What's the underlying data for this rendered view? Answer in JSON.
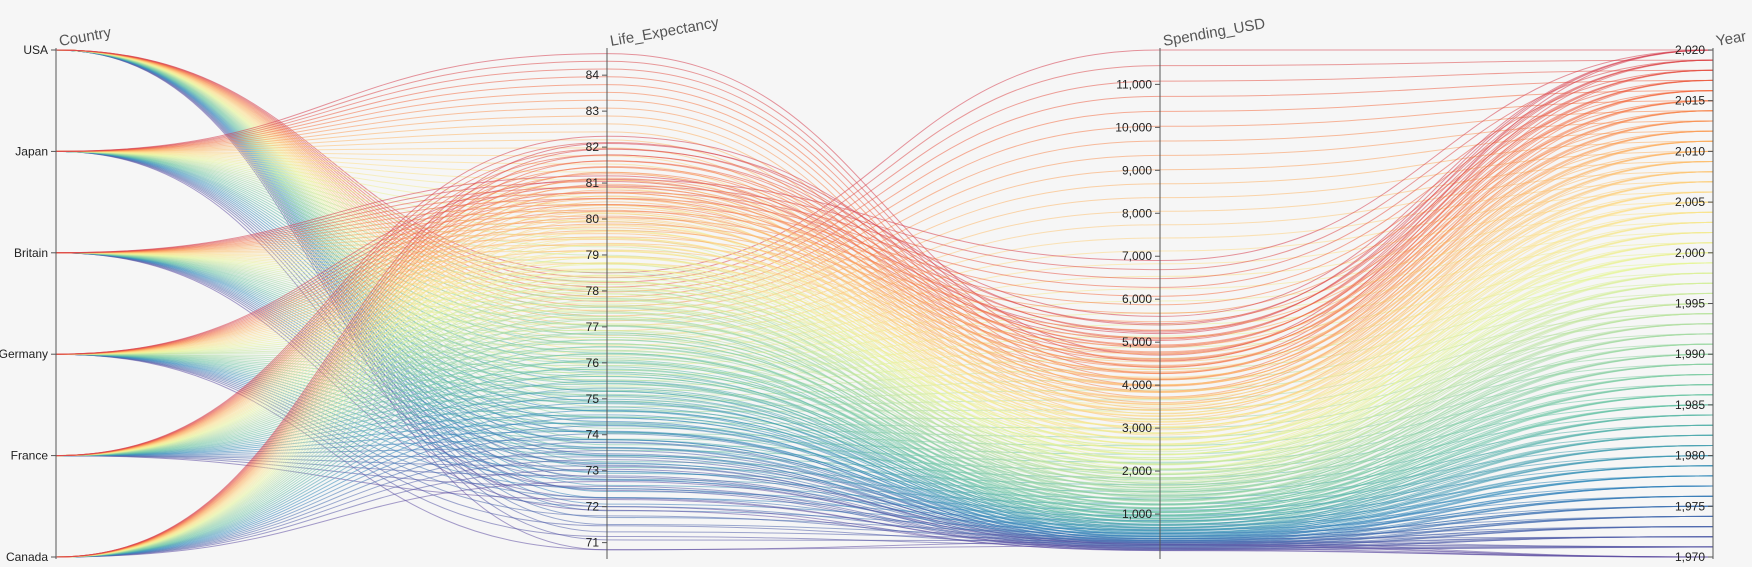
{
  "chart_data": {
    "type": "parallel_coordinates",
    "title": "",
    "dimensions": [
      {
        "name": "Country",
        "kind": "categorical",
        "categories": [
          "USA",
          "Japan",
          "Britain",
          "Germany",
          "France",
          "Canada"
        ]
      },
      {
        "name": "Life_Expectancy",
        "kind": "numeric",
        "range": [
          70.6,
          84.7
        ],
        "ticks": [
          71,
          72,
          73,
          74,
          75,
          76,
          77,
          78,
          79,
          80,
          81,
          82,
          83,
          84
        ],
        "tick_labels": [
          "71",
          "72",
          "73",
          "74",
          "75",
          "76",
          "77",
          "78",
          "79",
          "80",
          "81",
          "82",
          "83",
          "84"
        ]
      },
      {
        "name": "Spending_USD",
        "kind": "numeric",
        "range": [
          0,
          11800
        ],
        "ticks": [
          1000,
          2000,
          3000,
          4000,
          5000,
          6000,
          7000,
          8000,
          9000,
          10000,
          11000
        ],
        "tick_labels": [
          "1,000",
          "2,000",
          "3,000",
          "4,000",
          "5,000",
          "6,000",
          "7,000",
          "8,000",
          "9,000",
          "10,000",
          "11,000"
        ]
      },
      {
        "name": "Year",
        "kind": "numeric",
        "range": [
          1970,
          2020
        ],
        "ticks": [
          1970,
          1975,
          1980,
          1985,
          1990,
          1995,
          2000,
          2005,
          2010,
          2015,
          2020
        ],
        "tick_labels": [
          "1,970",
          "1,975",
          "1,980",
          "1,985",
          "1,990",
          "1,995",
          "2,000",
          "2,005",
          "2,010",
          "2,015",
          "2,020"
        ]
      }
    ],
    "color_by": "Year",
    "colormap": "spectral",
    "records_per_country": {
      "years_from": 1970,
      "years_to": 2020,
      "life_expectancy_1970": {
        "USA": 70.8,
        "Japan": 72.0,
        "Britain": 71.9,
        "Germany": 70.8,
        "France": 72.2,
        "Canada": 72.7
      },
      "life_expectancy_2020": {
        "USA": 78.5,
        "Japan": 84.6,
        "Britain": 81.2,
        "Germany": 81.1,
        "France": 82.3,
        "Canada": 82.1
      },
      "spending_1970": {
        "USA": 355,
        "Japan": 150,
        "Britain": 160,
        "Germany": 260,
        "France": 200,
        "Canada": 290
      },
      "spending_2020": {
        "USA": 11800,
        "Japan": 4700,
        "Britain": 5200,
        "Germany": 6900,
        "France": 5400,
        "Canada": 5600
      }
    }
  }
}
